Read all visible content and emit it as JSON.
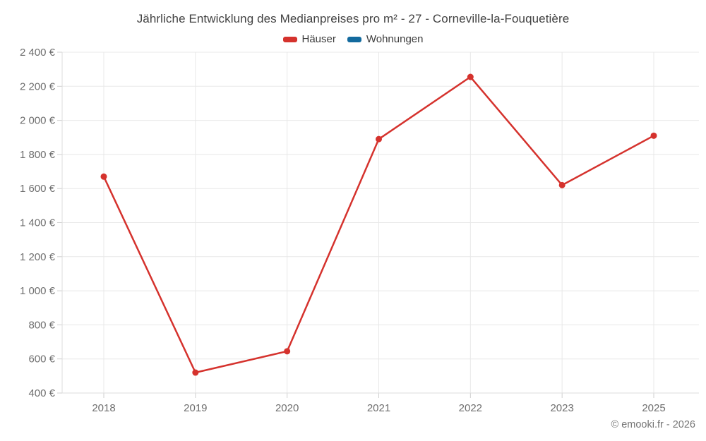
{
  "title": "Jährliche Entwicklung des Medianpreises pro m² - 27 - Corneville-la-Fouquetière",
  "legend": [
    {
      "label": "Häuser",
      "color": "#d5322d"
    },
    {
      "label": "Wohnungen",
      "color": "#136a9e"
    }
  ],
  "copyright": "© emooki.fr - 2026",
  "chart_data": {
    "type": "line",
    "title": "Jährliche Entwicklung des Medianpreises pro m² - 27 - Corneville-la-Fouquetière",
    "categories": [
      "2018",
      "2019",
      "2020",
      "2021",
      "2022",
      "2023",
      "2025"
    ],
    "series": [
      {
        "name": "Häuser",
        "color": "#d5322d",
        "values": [
          1670,
          520,
          645,
          1890,
          2255,
          1620,
          1910
        ]
      },
      {
        "name": "Wohnungen",
        "color": "#136a9e",
        "values": []
      }
    ],
    "xlabel": "",
    "ylabel": "",
    "ylim": [
      400,
      2400
    ],
    "ytick_step": 200,
    "ytick_labels": [
      "400 €",
      "600 €",
      "800 €",
      "1 000 €",
      "1 200 €",
      "1 400 €",
      "1 600 €",
      "1 800 €",
      "2 000 €",
      "2 200 €",
      "2 400 €"
    ],
    "grid": true,
    "legend_position": "top",
    "marker": "circle"
  }
}
